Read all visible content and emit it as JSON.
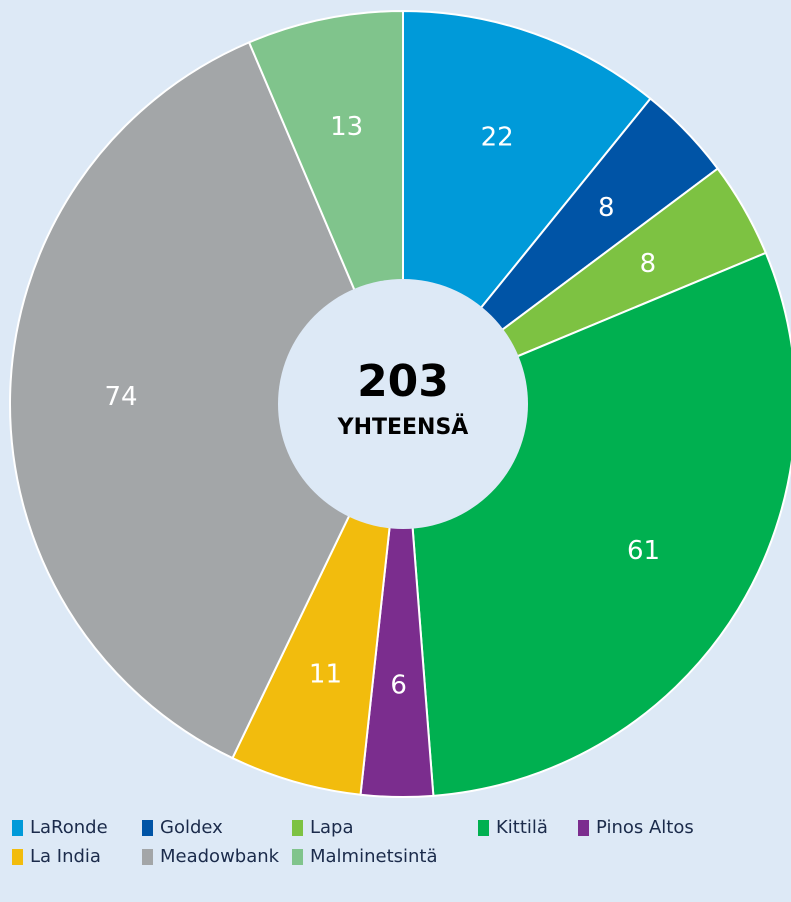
{
  "chart_data": {
    "type": "pie",
    "categories": [
      "LaRonde",
      "Goldex",
      "Lapa",
      "Kittilä",
      "Pinos Altos",
      "La India",
      "Meadowbank",
      "Malminetsintä"
    ],
    "values": [
      22,
      8,
      8,
      61,
      6,
      11,
      74,
      13
    ],
    "colors": [
      "#009ad9",
      "#0054a6",
      "#7dc242",
      "#00b050",
      "#7b2d8e",
      "#f2bc0d",
      "#a3a6a8",
      "#80c48c"
    ],
    "total": 203,
    "total_label": "YHTEENSÄ",
    "donut": true,
    "legend": "bottom"
  }
}
